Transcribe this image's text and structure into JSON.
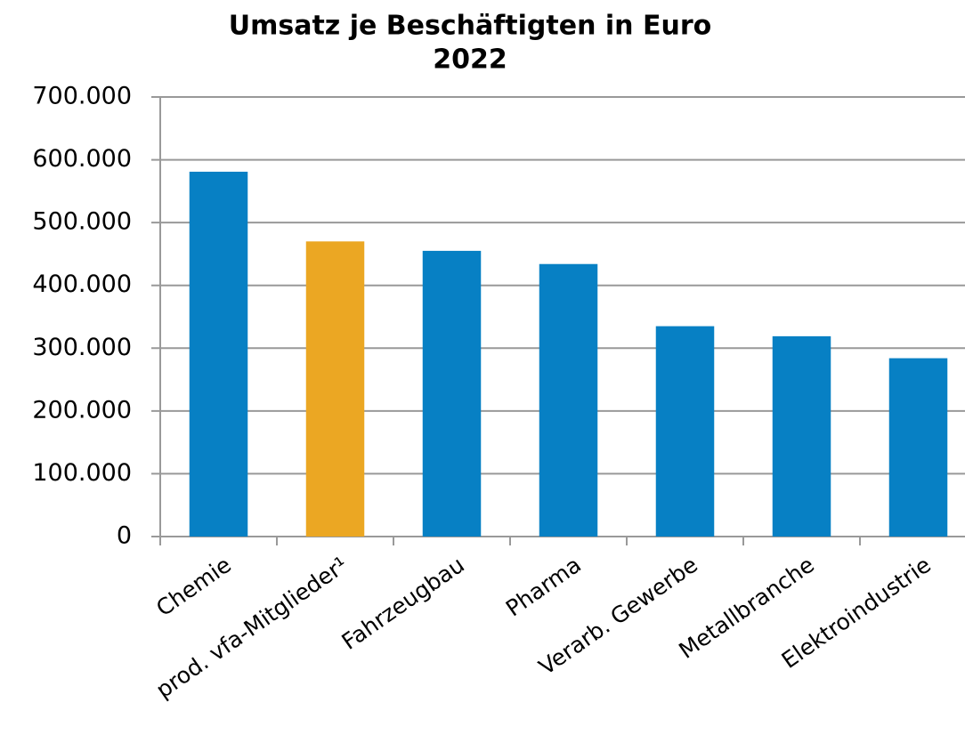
{
  "chart_data": {
    "type": "bar",
    "title": "Umsatz je Beschäftigten in Euro",
    "subtitle": "2022",
    "categories": [
      "Chemie",
      "prod. vfa-Mitglieder¹",
      "Fahrzeugbau",
      "Pharma",
      "Verarb. Gewerbe",
      "Metallbranche",
      "Elektroindustrie"
    ],
    "values": [
      581000,
      470000,
      455000,
      434000,
      335000,
      319000,
      284000
    ],
    "colors": [
      "#0780c4",
      "#eba723",
      "#0780c4",
      "#0780c4",
      "#0780c4",
      "#0780c4",
      "#0780c4"
    ],
    "ylim": [
      0,
      700000
    ],
    "yticks": [
      0,
      {
        "value": 100000,
        "label": "100.000"
      },
      {
        "value": 200000,
        "label": "200.000"
      },
      {
        "value": 300000,
        "label": "300.000"
      },
      {
        "value": 400000,
        "label": "400.000"
      },
      {
        "value": 500000,
        "label": "500.000"
      },
      {
        "value": 600000,
        "label": "600.000"
      },
      {
        "value": 700000,
        "label": "700.000"
      }
    ],
    "grid": true
  }
}
